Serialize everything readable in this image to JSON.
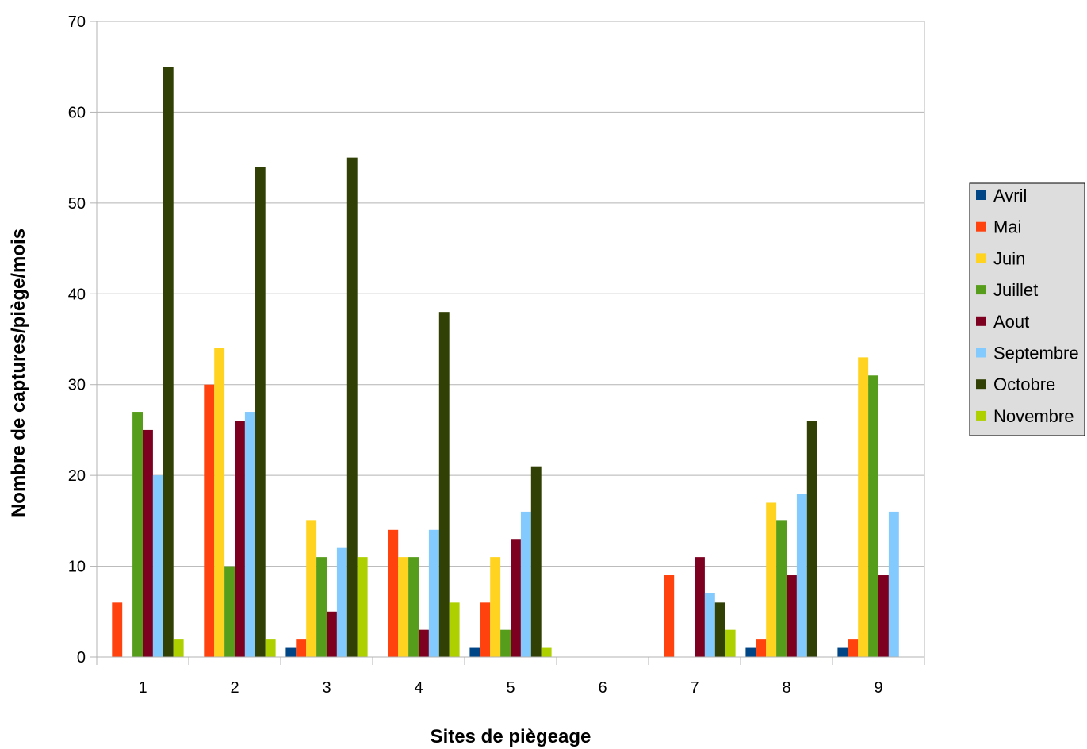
{
  "chart_data": {
    "type": "bar",
    "title": "",
    "xlabel": "Sites de piègeage",
    "ylabel": "Nombre de captures/piège/mois",
    "categories": [
      "1",
      "2",
      "3",
      "4",
      "5",
      "6",
      "7",
      "8",
      "9"
    ],
    "ylim": [
      0,
      70
    ],
    "yticks": [
      0,
      10,
      20,
      30,
      40,
      50,
      60,
      70
    ],
    "grid": true,
    "legend_position": "right",
    "series": [
      {
        "name": "Avril",
        "color": "#004586",
        "values": [
          0,
          0,
          1,
          0,
          1,
          0,
          0,
          1,
          1
        ]
      },
      {
        "name": "Mai",
        "color": "#ff420e",
        "values": [
          6,
          30,
          2,
          14,
          6,
          0,
          9,
          2,
          2
        ]
      },
      {
        "name": "Juin",
        "color": "#ffd320",
        "values": [
          0,
          34,
          15,
          11,
          11,
          0,
          0,
          17,
          33
        ]
      },
      {
        "name": "Juillet",
        "color": "#579d1c",
        "values": [
          27,
          10,
          11,
          11,
          3,
          0,
          0,
          15,
          31
        ]
      },
      {
        "name": "Aout",
        "color": "#7e0021",
        "values": [
          25,
          26,
          5,
          3,
          13,
          0,
          11,
          9,
          9
        ]
      },
      {
        "name": "Septembre",
        "color": "#83caff",
        "values": [
          20,
          27,
          12,
          14,
          16,
          0,
          7,
          18,
          16
        ]
      },
      {
        "name": "Octobre",
        "color": "#314004",
        "values": [
          65,
          54,
          55,
          38,
          21,
          0,
          6,
          26,
          0
        ]
      },
      {
        "name": "Novembre",
        "color": "#aecf00",
        "values": [
          2,
          2,
          11,
          6,
          1,
          0,
          3,
          0,
          0
        ]
      }
    ]
  }
}
